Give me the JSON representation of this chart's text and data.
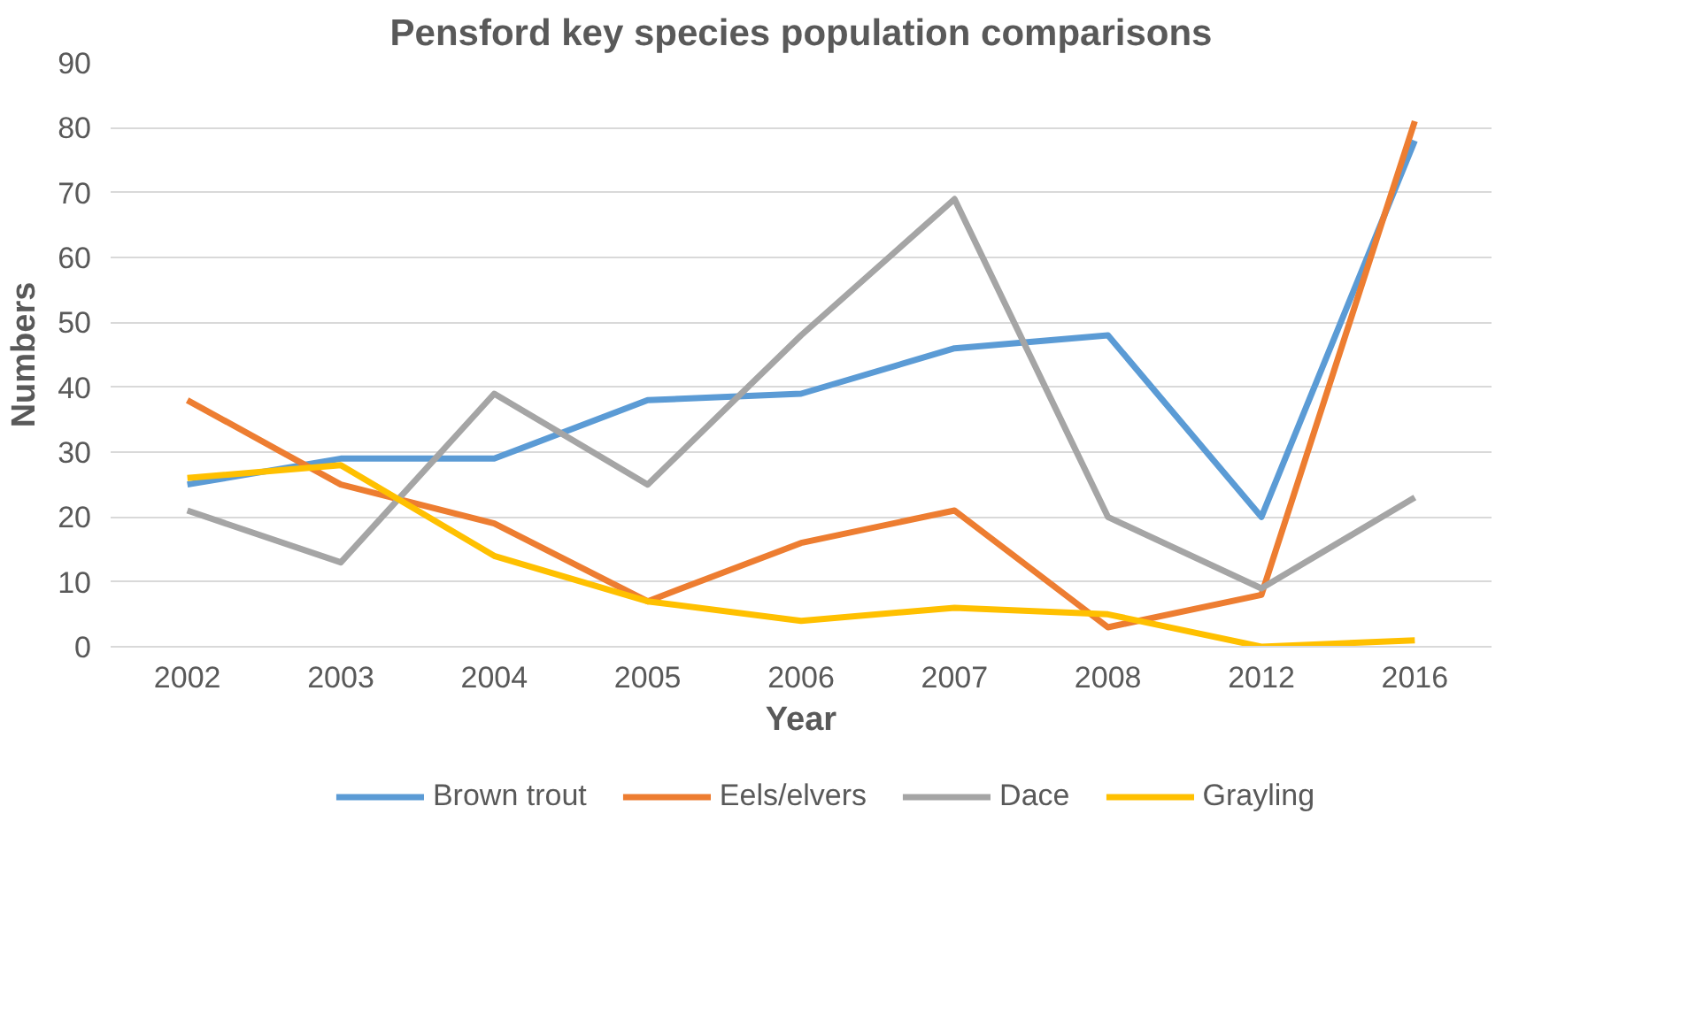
{
  "chart_data": {
    "type": "line",
    "title": "Pensford key species population comparisons",
    "xlabel": "Year",
    "ylabel": "Numbers",
    "categories": [
      "2002",
      "2003",
      "2004",
      "2005",
      "2006",
      "2007",
      "2008",
      "2012",
      "2016"
    ],
    "series": [
      {
        "name": "Brown trout",
        "color": "#5b9bd5",
        "values": [
          25,
          29,
          29,
          38,
          39,
          46,
          48,
          20,
          78
        ]
      },
      {
        "name": "Eels/elvers",
        "color": "#ed7d31",
        "values": [
          38,
          25,
          19,
          7,
          16,
          21,
          3,
          8,
          81
        ]
      },
      {
        "name": "Dace",
        "color": "#a5a5a5",
        "values": [
          21,
          13,
          39,
          25,
          48,
          69,
          20,
          9,
          23
        ]
      },
      {
        "name": "Grayling",
        "color": "#ffc000",
        "values": [
          26,
          28,
          14,
          7,
          4,
          6,
          5,
          0,
          1
        ]
      }
    ],
    "ylim": [
      0,
      90
    ],
    "yticks": [
      0,
      10,
      20,
      30,
      40,
      50,
      60,
      70,
      80,
      90
    ],
    "grid": "y",
    "legend": "bottom",
    "marker": "none",
    "line_style": "solid"
  }
}
